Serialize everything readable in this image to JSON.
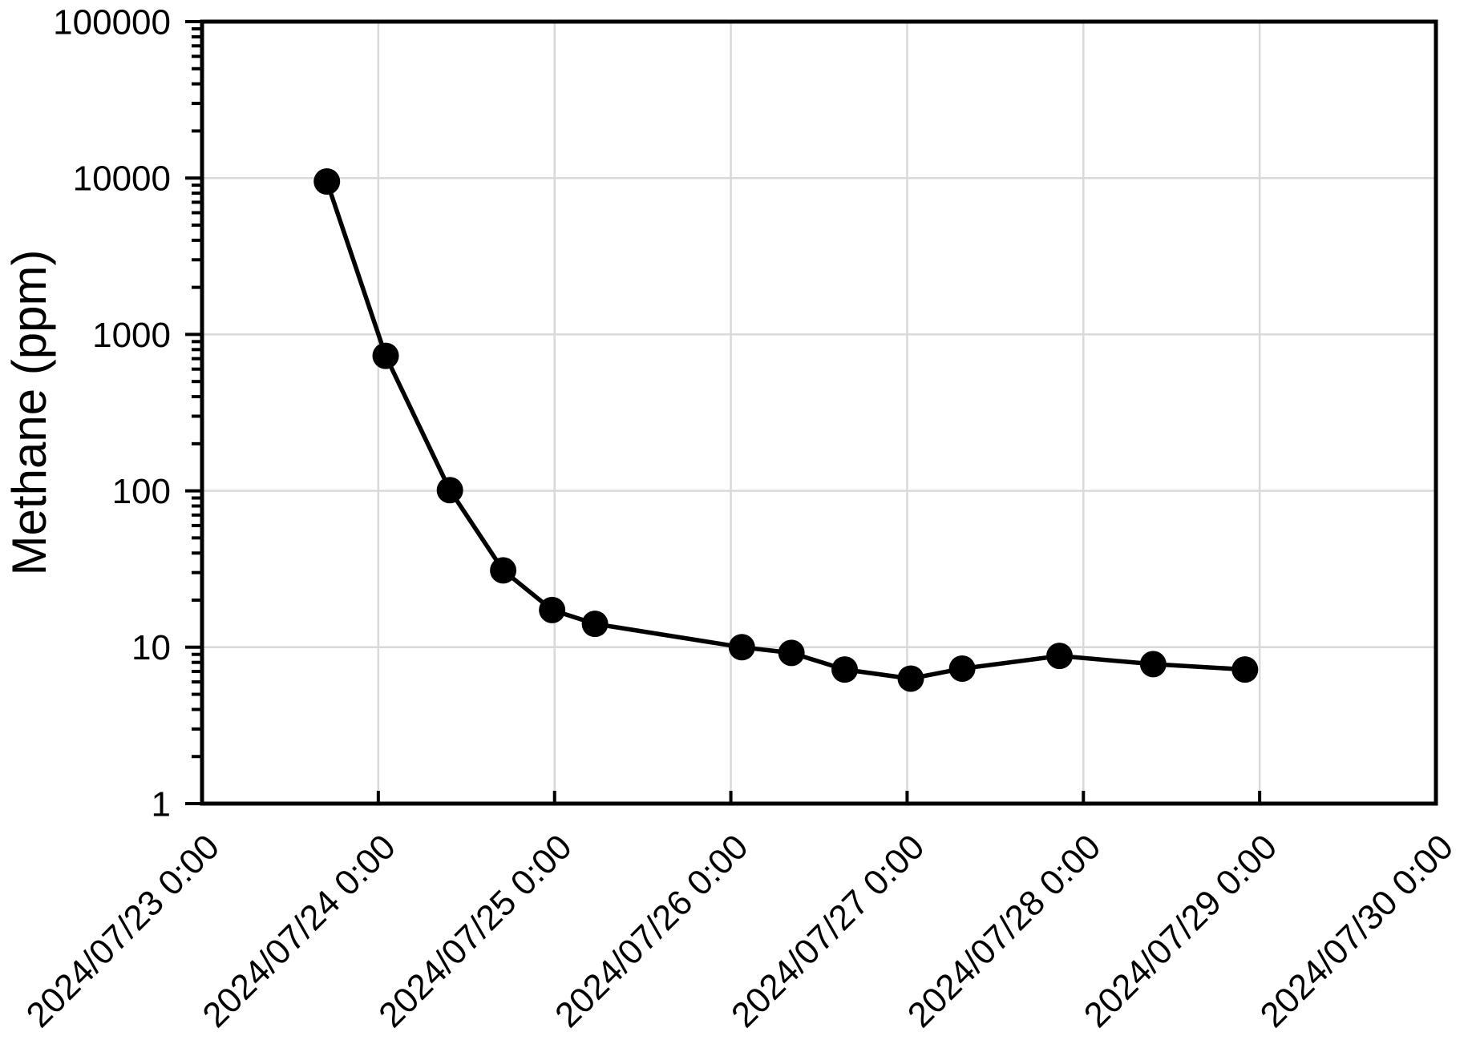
{
  "page": {
    "background": "#ffffff"
  },
  "style": {
    "axis_color": "#000000",
    "grid_color": "#d9d9d9",
    "marker_color": "#000000",
    "line_color": "#000000",
    "marker_radius": 16.5,
    "line_width": 5.5,
    "frame_width": 5,
    "grid_width": 2.5,
    "tick_width": 4
  },
  "chart_data": {
    "type": "line",
    "title": "",
    "xlabel": "",
    "ylabel": "Methane (ppm)",
    "y_scale": "log",
    "ylim": [
      1,
      100000
    ],
    "y_ticks": [
      1,
      10,
      100,
      1000,
      10000,
      100000
    ],
    "y_tick_labels": [
      "1",
      "10",
      "100",
      "1000",
      "10000",
      "100000"
    ],
    "y_minor_ticks": "log-2-to-9-each-decade",
    "x_range": [
      "2024/07/23 0:00",
      "2024/07/30 0:00"
    ],
    "x_tick_labels": [
      "2024/07/23 0:00",
      "2024/07/24 0:00",
      "2024/07/25 0:00",
      "2024/07/26 0:00",
      "2024/07/27 0:00",
      "2024/07/28 0:00",
      "2024/07/29 0:00",
      "2024/07/30 0:00"
    ],
    "grid": true,
    "legend_position": "none",
    "series": [
      {
        "name": "Methane (ppm)",
        "marker": "circle",
        "color": "#000000",
        "points": [
          {
            "x": "2024/07/23 17:00",
            "y": 9500
          },
          {
            "x": "2024/07/24 1:00",
            "y": 730
          },
          {
            "x": "2024/07/24 9:45",
            "y": 101
          },
          {
            "x": "2024/07/24 17:00",
            "y": 31
          },
          {
            "x": "2024/07/24 23:40",
            "y": 17.3
          },
          {
            "x": "2024/07/25 5:30",
            "y": 14.1
          },
          {
            "x": "2024/07/26 1:30",
            "y": 10.0
          },
          {
            "x": "2024/07/26 8:15",
            "y": 9.2
          },
          {
            "x": "2024/07/26 15:30",
            "y": 7.2
          },
          {
            "x": "2024/07/27 0:30",
            "y": 6.3
          },
          {
            "x": "2024/07/27 7:30",
            "y": 7.3
          },
          {
            "x": "2024/07/27 20:45",
            "y": 8.8
          },
          {
            "x": "2024/07/28 9:30",
            "y": 7.8
          },
          {
            "x": "2024/07/28 22:00",
            "y": 7.2
          }
        ]
      }
    ]
  }
}
